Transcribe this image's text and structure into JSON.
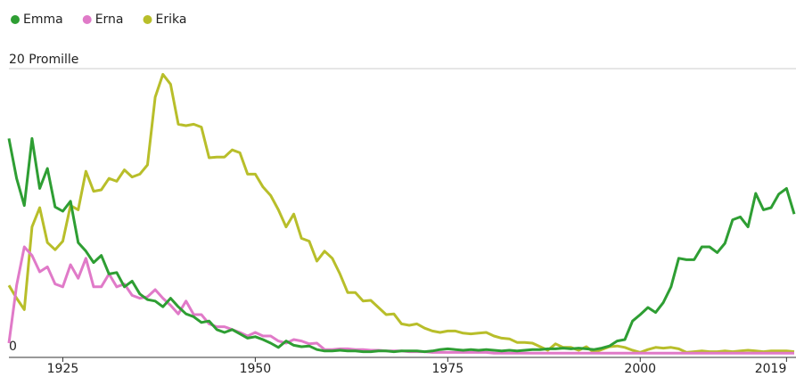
{
  "chart_data": {
    "type": "line",
    "x": [
      1918,
      1919,
      1920,
      1921,
      1922,
      1923,
      1924,
      1925,
      1926,
      1927,
      1928,
      1929,
      1930,
      1931,
      1932,
      1933,
      1934,
      1935,
      1936,
      1937,
      1938,
      1939,
      1940,
      1941,
      1942,
      1943,
      1944,
      1945,
      1946,
      1947,
      1948,
      1949,
      1950,
      1951,
      1952,
      1953,
      1954,
      1955,
      1956,
      1957,
      1958,
      1959,
      1960,
      1961,
      1962,
      1963,
      1964,
      1965,
      1966,
      1967,
      1968,
      1969,
      1970,
      1971,
      1972,
      1973,
      1974,
      1975,
      1976,
      1977,
      1978,
      1979,
      1980,
      1981,
      1982,
      1983,
      1984,
      1985,
      1986,
      1987,
      1988,
      1989,
      1990,
      1991,
      1992,
      1993,
      1994,
      1995,
      1996,
      1997,
      1998,
      1999,
      2000,
      2001,
      2002,
      2003,
      2004,
      2005,
      2006,
      2007,
      2008,
      2009,
      2010,
      2011,
      2012,
      2013,
      2014,
      2015,
      2016,
      2017,
      2018,
      2019,
      2020
    ],
    "series": [
      {
        "name": "Emma",
        "color": "#2e9e33",
        "values": [
          15.1,
          12.3,
          10.4,
          15.1,
          11.6,
          13,
          10.3,
          10,
          10.7,
          7.8,
          7.2,
          6.4,
          6.9,
          5.6,
          5.7,
          4.7,
          5.1,
          4.2,
          3.8,
          3.7,
          3.3,
          3.9,
          3.3,
          2.8,
          2.6,
          2.2,
          2.3,
          1.7,
          1.5,
          1.7,
          1.4,
          1.1,
          1.2,
          1.0,
          0.75,
          0.45,
          0.9,
          0.6,
          0.5,
          0.55,
          0.3,
          0.2,
          0.2,
          0.25,
          0.2,
          0.2,
          0.15,
          0.15,
          0.2,
          0.2,
          0.15,
          0.2,
          0.2,
          0.2,
          0.15,
          0.2,
          0.3,
          0.35,
          0.3,
          0.25,
          0.3,
          0.25,
          0.3,
          0.25,
          0.2,
          0.25,
          0.2,
          0.25,
          0.3,
          0.3,
          0.35,
          0.35,
          0.4,
          0.35,
          0.4,
          0.35,
          0.3,
          0.4,
          0.55,
          0.9,
          1.0,
          2.3,
          2.75,
          3.25,
          2.9,
          3.6,
          4.7,
          6.7,
          6.6,
          6.6,
          7.5,
          7.5,
          7.1,
          7.75,
          9.4,
          9.6,
          8.9,
          11.25,
          10.1,
          10.25,
          11.2,
          11.6,
          9.8
        ]
      },
      {
        "name": "Erna",
        "color": "#e07ac8",
        "values": [
          0.75,
          4.8,
          7.5,
          6.9,
          5.75,
          6.1,
          4.9,
          4.7,
          6.25,
          5.3,
          6.7,
          4.7,
          4.7,
          5.6,
          4.7,
          4.9,
          4.1,
          3.9,
          4.0,
          4.5,
          3.9,
          3.4,
          2.8,
          3.7,
          2.75,
          2.75,
          2.1,
          1.9,
          1.9,
          1.7,
          1.5,
          1.25,
          1.5,
          1.25,
          1.25,
          0.9,
          0.75,
          1.0,
          0.9,
          0.7,
          0.75,
          0.3,
          0.3,
          0.35,
          0.35,
          0.3,
          0.3,
          0.25,
          0.25,
          0.2,
          0.2,
          0.2,
          0.15,
          0.15,
          0.15,
          0.1,
          0.1,
          0.1,
          0.1,
          0.1,
          0.1,
          0.1,
          0.1,
          0.05,
          0.05,
          0.05,
          0.05,
          0.05,
          0.05,
          0.05,
          0.05,
          0.05,
          0.05,
          0.05,
          0.05,
          0.05,
          0.05,
          0.05,
          0.05,
          0.05,
          0.05,
          0.05,
          0.05,
          0.05,
          0.05,
          0.05,
          0.05,
          0.05,
          0.05,
          0.05,
          0.05,
          0.05,
          0.05,
          0.05,
          0.05,
          0.05,
          0.05,
          0.05,
          0.05,
          0.05,
          0.05,
          0.05,
          0.05
        ]
      },
      {
        "name": "Erika",
        "color": "#b8be2a",
        "values": [
          4.8,
          3.9,
          3.1,
          8.9,
          10.25,
          7.8,
          7.3,
          7.9,
          10.4,
          10.1,
          12.8,
          11.4,
          11.5,
          12.3,
          12.1,
          12.9,
          12.4,
          12.6,
          13.25,
          18,
          19.6,
          18.9,
          16.1,
          16,
          16.1,
          15.9,
          13.75,
          13.8,
          13.8,
          14.3,
          14.1,
          12.6,
          12.6,
          11.7,
          11.1,
          10.1,
          8.9,
          9.8,
          8.1,
          7.9,
          6.5,
          7.2,
          6.7,
          5.6,
          4.3,
          4.3,
          3.7,
          3.75,
          3.25,
          2.75,
          2.8,
          2.1,
          2.0,
          2.1,
          1.8,
          1.6,
          1.5,
          1.6,
          1.6,
          1.45,
          1.4,
          1.45,
          1.5,
          1.25,
          1.1,
          1.05,
          0.8,
          0.8,
          0.75,
          0.5,
          0.25,
          0.7,
          0.45,
          0.45,
          0.25,
          0.5,
          0.1,
          0.3,
          0.5,
          0.55,
          0.45,
          0.25,
          0.1,
          0.3,
          0.45,
          0.4,
          0.45,
          0.35,
          0.1,
          0.15,
          0.2,
          0.15,
          0.15,
          0.2,
          0.15,
          0.2,
          0.25,
          0.2,
          0.15,
          0.2,
          0.2,
          0.2,
          0.15
        ]
      }
    ],
    "xlim": [
      1918,
      2020
    ],
    "xticks": [
      1925,
      1950,
      1975,
      2000,
      2019
    ],
    "ylim": [
      0,
      20
    ],
    "yticks": [
      0,
      {
        "value": 20,
        "label": "20 Promille"
      }
    ],
    "grid": true,
    "legend": "top-left"
  }
}
